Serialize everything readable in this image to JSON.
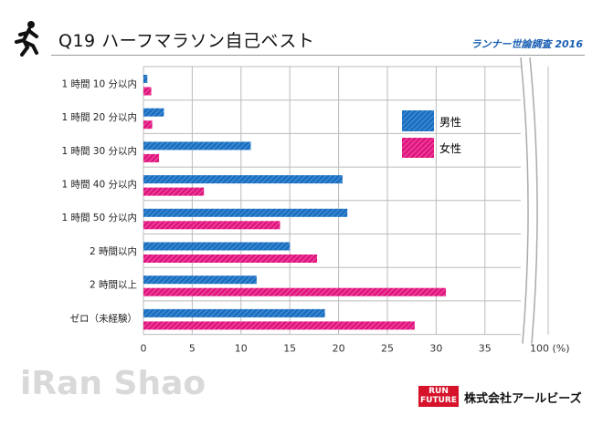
{
  "header": {
    "title": "Q19 ハーフマラソン自己ベスト",
    "survey": "ランナー世論調査 2016"
  },
  "footer": {
    "watermark": "iRan Shao",
    "badge_top": "RUN",
    "badge_bottom": "FUTURE",
    "company": "株式会社アールビーズ"
  },
  "chart_data": {
    "type": "bar",
    "orientation": "horizontal",
    "categories": [
      "1 時間 10 分以内",
      "1 時間 20 分以内",
      "1 時間 30 分以内",
      "1 時間 40 分以内",
      "1 時間 50 分以内",
      "2 時間以内",
      "2 時間以上",
      "ゼロ（未経験）"
    ],
    "series": [
      {
        "name": "男性",
        "color": "#1a6fc0",
        "values": [
          0.4,
          2.1,
          11.0,
          20.4,
          20.9,
          15.0,
          11.6,
          18.6
        ]
      },
      {
        "name": "女性",
        "color": "#e0157f",
        "values": [
          0.8,
          0.9,
          1.6,
          6.2,
          14.0,
          17.8,
          31.0,
          27.8
        ]
      }
    ],
    "xticks": [
      "0",
      "5",
      "10",
      "15",
      "20",
      "25",
      "30",
      "35"
    ],
    "xtick_break_label": "100 (%)",
    "xlim": [
      0,
      35
    ],
    "axis_break": true,
    "grid": true,
    "legend": "upper-right inside"
  }
}
